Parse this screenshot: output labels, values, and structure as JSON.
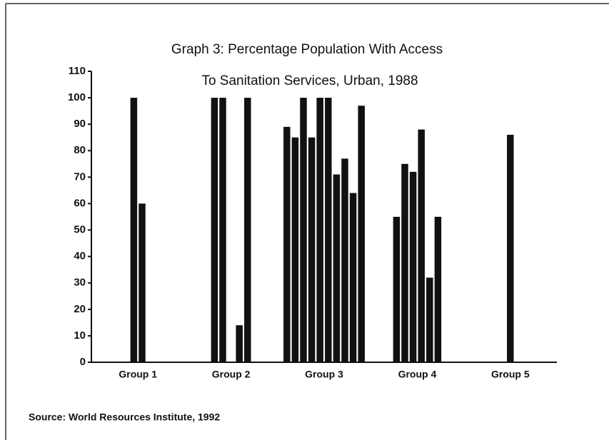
{
  "chart_data": {
    "type": "bar",
    "title": [
      "Graph  3: Percentage Population With Access",
      "To Sanitation Services, Urban, 1988"
    ],
    "source": "Source: World Resources Institute, 1992",
    "groups": [
      {
        "name": "Group 1",
        "values": [
          100,
          60
        ]
      },
      {
        "name": "Group 2",
        "values": [
          100,
          100,
          null,
          14,
          100
        ]
      },
      {
        "name": "Group 3",
        "values": [
          89,
          85,
          100,
          85,
          100,
          100,
          71,
          77,
          64,
          97
        ]
      },
      {
        "name": "Group 4",
        "values": [
          55,
          75,
          72,
          88,
          32,
          55
        ]
      },
      {
        "name": "Group 5",
        "values": [
          86
        ]
      }
    ],
    "color": "#111111",
    "ylim": [
      0,
      110
    ],
    "yticks": [
      0,
      10,
      20,
      30,
      40,
      50,
      60,
      70,
      80,
      90,
      100,
      110
    ]
  }
}
